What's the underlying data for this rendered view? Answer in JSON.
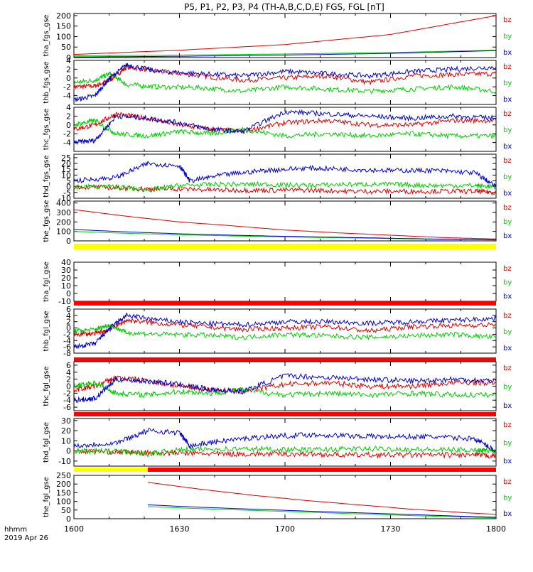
{
  "title": "P5, P1, P2, P3, P4 (TH-A,B,C,D,E) FGS, FGL [nT]",
  "colors": {
    "bx": "#0000cc",
    "by": "#00cc00",
    "bz": "#dd0000",
    "bar_yellow": "#ffff00",
    "bar_red": "#ff0000"
  },
  "time_axis": {
    "ticks": [
      "1600",
      "1630",
      "1700",
      "1730",
      "1800"
    ],
    "hours_start": 0,
    "hours_end": 2
  },
  "footer": {
    "label_hhmm": "hhmm",
    "date": "2019 Apr 26"
  },
  "chart_data": [
    {
      "type": "line",
      "panel": "tha_fgs_gse",
      "ylabel": "tha_fgs_gse",
      "ylim": [
        0,
        210
      ],
      "yticks": [
        0,
        50,
        100,
        150,
        200
      ],
      "legend": [
        "bz",
        "by",
        "bx"
      ],
      "series": [
        {
          "name": "bz",
          "color": "bz",
          "x": [
            0,
            0.5,
            1,
            1.5,
            2
          ],
          "values": [
            15,
            35,
            62,
            110,
            200
          ]
        },
        {
          "name": "by",
          "color": "by",
          "x": [
            0,
            0.5,
            1,
            1.5,
            2
          ],
          "values": [
            8,
            12,
            17,
            24,
            35
          ]
        },
        {
          "name": "bx",
          "color": "bx",
          "x": [
            0,
            0.5,
            1,
            1.5,
            2
          ],
          "values": [
            3,
            6,
            12,
            20,
            33
          ]
        }
      ]
    },
    {
      "type": "line",
      "panel": "thb_fgs_gse",
      "ylabel": "thb_fgs_gse",
      "ylim": [
        -6,
        4
      ],
      "yticks": [
        -4,
        -2,
        0,
        2,
        4
      ],
      "legend": [
        "bz",
        "by",
        "bx"
      ],
      "series": [
        {
          "name": "bz",
          "color": "bz",
          "x": [
            0,
            0.1,
            0.17,
            0.25,
            0.4,
            0.6,
            0.8,
            1.0,
            1.2,
            1.4,
            1.6,
            1.8,
            2.0
          ],
          "values": [
            -2,
            -1.8,
            -0.5,
            2.5,
            1.5,
            0.5,
            -0.5,
            0.0,
            0.5,
            -1.0,
            0.5,
            0.8,
            1.0
          ]
        },
        {
          "name": "by",
          "color": "by",
          "x": [
            0,
            0.1,
            0.17,
            0.25,
            0.4,
            0.6,
            0.8,
            1.0,
            1.2,
            1.4,
            1.6,
            1.8,
            2.0
          ],
          "values": [
            -1,
            -0.5,
            1.0,
            -1.5,
            -2.0,
            -2.2,
            -3.0,
            -2.0,
            -2.5,
            -3.0,
            -2.5,
            -2.0,
            -3.0
          ]
        },
        {
          "name": "bx",
          "color": "bx",
          "x": [
            0,
            0.1,
            0.17,
            0.25,
            0.4,
            0.6,
            0.8,
            1.0,
            1.2,
            1.4,
            1.6,
            1.8,
            2.0
          ],
          "values": [
            -5,
            -4,
            0,
            3,
            1.5,
            1.0,
            0.5,
            1.5,
            1.0,
            0.5,
            1.5,
            2.0,
            2.5
          ]
        }
      ]
    },
    {
      "type": "line",
      "panel": "thc_fgs_gse",
      "ylabel": "thc_fgs_gse",
      "ylim": [
        -6,
        4
      ],
      "yticks": [
        -4,
        -2,
        0,
        2,
        4
      ],
      "legend": [
        "bz",
        "by",
        "bx"
      ],
      "series": [
        {
          "name": "bz",
          "color": "bz",
          "x": [
            0,
            0.1,
            0.2,
            0.35,
            0.5,
            0.65,
            0.8,
            1.0,
            1.2,
            1.4,
            1.6,
            1.8,
            2.0
          ],
          "values": [
            -1,
            0,
            2.5,
            1.5,
            0.0,
            -1.0,
            -1.5,
            0.5,
            1.0,
            0.0,
            0.0,
            1.0,
            1.0
          ]
        },
        {
          "name": "by",
          "color": "by",
          "x": [
            0,
            0.1,
            0.2,
            0.35,
            0.5,
            0.65,
            0.8,
            1.0,
            1.2,
            1.4,
            1.6,
            1.8,
            2.0
          ],
          "values": [
            0,
            1.0,
            -2.0,
            -2.5,
            -1.5,
            -2.0,
            -1.0,
            -2.5,
            -2.0,
            -2.5,
            -2.0,
            -2.5,
            -2.5
          ]
        },
        {
          "name": "bx",
          "color": "bx",
          "x": [
            0,
            0.1,
            0.2,
            0.35,
            0.5,
            0.65,
            0.8,
            1.0,
            1.2,
            1.4,
            1.6,
            1.8,
            2.0
          ],
          "values": [
            -4,
            -3.5,
            2.0,
            1.5,
            0.5,
            -1.0,
            -1.5,
            3.0,
            2.5,
            2.0,
            1.5,
            2.0,
            1.5
          ]
        }
      ]
    },
    {
      "type": "line",
      "panel": "thd_fgs_gse",
      "ylabel": "thd_fgs_gse",
      "ylim": [
        -10,
        28
      ],
      "yticks": [
        -10,
        -5,
        0,
        5,
        10,
        15,
        20,
        25
      ],
      "legend": [
        "bz",
        "by",
        "bx"
      ],
      "series": [
        {
          "name": "bz",
          "color": "bz",
          "x": [
            0,
            0.2,
            0.35,
            0.5,
            0.7,
            0.9,
            1.1,
            1.3,
            1.5,
            1.7,
            1.9,
            2.0
          ],
          "values": [
            0,
            -1,
            -2,
            -2,
            -3,
            -3,
            -3,
            -4,
            -4,
            -4,
            -4,
            -5
          ]
        },
        {
          "name": "by",
          "color": "by",
          "x": [
            0,
            0.2,
            0.35,
            0.5,
            0.7,
            0.9,
            1.1,
            1.3,
            1.5,
            1.7,
            1.9,
            2.0
          ],
          "values": [
            0,
            0,
            -3,
            1,
            2,
            2,
            1,
            2,
            2,
            1,
            1,
            0
          ]
        },
        {
          "name": "bx",
          "color": "bx",
          "x": [
            0,
            0.2,
            0.35,
            0.5,
            0.55,
            0.7,
            0.9,
            1.1,
            1.3,
            1.5,
            1.7,
            1.9,
            2.0
          ],
          "values": [
            5,
            8,
            20,
            18,
            5,
            10,
            14,
            16,
            15,
            14,
            14,
            12,
            0
          ]
        }
      ]
    },
    {
      "type": "line",
      "panel": "the_fgs_gse",
      "ylabel": "the_fgs_gse",
      "ylim": [
        0,
        420
      ],
      "yticks": [
        0,
        100,
        200,
        300,
        400
      ],
      "legend": [
        "bz",
        "by",
        "bx"
      ],
      "series": [
        {
          "name": "bz",
          "color": "bz",
          "x": [
            0,
            0.25,
            0.5,
            0.75,
            1,
            1.25,
            1.5,
            1.75,
            2
          ],
          "values": [
            330,
            260,
            200,
            160,
            115,
            85,
            60,
            35,
            20
          ]
        },
        {
          "name": "by",
          "color": "by",
          "x": [
            0,
            0.25,
            0.5,
            0.75,
            1,
            1.25,
            1.5,
            1.75,
            2
          ],
          "values": [
            100,
            80,
            65,
            52,
            42,
            33,
            25,
            15,
            10
          ]
        },
        {
          "name": "bx",
          "color": "bx",
          "x": [
            0,
            0.25,
            0.5,
            0.75,
            1,
            1.25,
            1.5,
            1.75,
            2
          ],
          "values": [
            120,
            95,
            75,
            60,
            48,
            38,
            28,
            18,
            12
          ]
        }
      ]
    },
    {
      "type": "line",
      "panel": "tha_fgl_gse",
      "ylabel": "tha_fgl_gse",
      "ylim": [
        -10,
        40
      ],
      "yticks": [
        -10,
        0,
        10,
        20,
        30,
        40
      ],
      "legend": [
        "bz",
        "by",
        "bx"
      ],
      "series": []
    },
    {
      "type": "line",
      "panel": "thb_fgl_gse",
      "ylabel": "thb_fgl_gse",
      "ylim": [
        -8,
        6
      ],
      "yticks": [
        -8,
        -6,
        -4,
        -2,
        0,
        2,
        4,
        6
      ],
      "legend": [
        "bz",
        "by",
        "bx"
      ],
      "series": [
        {
          "name": "bz",
          "color": "bz",
          "x": [
            0,
            0.1,
            0.17,
            0.25,
            0.4,
            0.6,
            0.8,
            1.0,
            1.2,
            1.4,
            1.6,
            1.8,
            2.0
          ],
          "values": [
            -2,
            -1.8,
            -0.5,
            2.5,
            1.5,
            0.5,
            -0.5,
            0.0,
            0.5,
            -1.0,
            0.5,
            0.8,
            1.0
          ]
        },
        {
          "name": "by",
          "color": "by",
          "x": [
            0,
            0.1,
            0.17,
            0.25,
            0.4,
            0.6,
            0.8,
            1.0,
            1.2,
            1.4,
            1.6,
            1.8,
            2.0
          ],
          "values": [
            -1,
            -0.5,
            1.0,
            -1.5,
            -2.0,
            -2.2,
            -3.0,
            -2.0,
            -2.5,
            -3.0,
            -2.5,
            -2.0,
            -3.0
          ]
        },
        {
          "name": "bx",
          "color": "bx",
          "x": [
            0,
            0.1,
            0.17,
            0.25,
            0.4,
            0.6,
            0.8,
            1.0,
            1.2,
            1.4,
            1.6,
            1.8,
            2.0
          ],
          "values": [
            -6,
            -5,
            0,
            4,
            2.5,
            1.5,
            1.0,
            2.0,
            2.0,
            1.5,
            2.0,
            2.5,
            3.0
          ]
        }
      ]
    },
    {
      "type": "line",
      "panel": "thc_fgl_gse",
      "ylabel": "thc_fgl_gse",
      "ylim": [
        -7,
        7
      ],
      "yticks": [
        -6,
        -4,
        -2,
        0,
        2,
        4,
        6
      ],
      "legend": [
        "bz",
        "by",
        "bx"
      ],
      "series": [
        {
          "name": "bz",
          "color": "bz",
          "x": [
            0,
            0.1,
            0.2,
            0.35,
            0.5,
            0.65,
            0.8,
            1.0,
            1.2,
            1.4,
            1.6,
            1.8,
            2.0
          ],
          "values": [
            -1,
            0,
            2.5,
            1.5,
            0.0,
            -1.0,
            -1.5,
            0.5,
            1.0,
            0.0,
            0.0,
            1.0,
            1.0
          ]
        },
        {
          "name": "by",
          "color": "by",
          "x": [
            0,
            0.1,
            0.2,
            0.35,
            0.5,
            0.65,
            0.8,
            1.0,
            1.2,
            1.4,
            1.6,
            1.8,
            2.0
          ],
          "values": [
            0,
            1.0,
            -2.0,
            -2.5,
            -1.5,
            -2.0,
            -1.0,
            -2.5,
            -2.0,
            -2.5,
            -2.0,
            -2.5,
            -2.5
          ]
        },
        {
          "name": "bx",
          "color": "bx",
          "x": [
            0,
            0.1,
            0.2,
            0.35,
            0.5,
            0.65,
            0.8,
            1.0,
            1.2,
            1.4,
            1.6,
            1.8,
            2.0
          ],
          "values": [
            -4,
            -3.5,
            2.0,
            1.5,
            0.5,
            -1.0,
            -1.5,
            3.0,
            2.5,
            2.0,
            1.5,
            2.0,
            1.5
          ]
        }
      ]
    },
    {
      "type": "line",
      "panel": "thd_fgl_gse",
      "ylabel": "thd_fgl_gse",
      "ylim": [
        -15,
        32
      ],
      "yticks": [
        -10,
        0,
        10,
        20,
        30
      ],
      "legend": [
        "bz",
        "by",
        "bx"
      ],
      "series": [
        {
          "name": "bz",
          "color": "bz",
          "x": [
            0,
            0.2,
            0.35,
            0.5,
            0.7,
            0.9,
            1.1,
            1.3,
            1.5,
            1.7,
            1.9,
            2.0
          ],
          "values": [
            0,
            -1,
            -2,
            -2,
            -3,
            -3,
            -3,
            -4,
            -4,
            -4,
            -4,
            -5
          ]
        },
        {
          "name": "by",
          "color": "by",
          "x": [
            0,
            0.2,
            0.35,
            0.5,
            0.7,
            0.9,
            1.1,
            1.3,
            1.5,
            1.7,
            1.9,
            2.0
          ],
          "values": [
            0,
            0,
            -3,
            1,
            2,
            2,
            1,
            2,
            2,
            1,
            1,
            0
          ]
        },
        {
          "name": "bx",
          "color": "bx",
          "x": [
            0,
            0.2,
            0.35,
            0.5,
            0.55,
            0.7,
            0.9,
            1.1,
            1.3,
            1.5,
            1.7,
            1.9,
            2.0
          ],
          "values": [
            5,
            8,
            20,
            18,
            5,
            10,
            14,
            16,
            15,
            14,
            14,
            12,
            0
          ]
        }
      ]
    },
    {
      "type": "line",
      "panel": "the_fgl_gse",
      "ylabel": "the_fgl_gse",
      "ylim": [
        0,
        250
      ],
      "yticks": [
        0,
        50,
        100,
        150,
        200,
        250
      ],
      "legend": [
        "bz",
        "by",
        "bx"
      ],
      "series": [
        {
          "name": "bz",
          "color": "bz",
          "x": [
            0.35,
            0.6,
            0.85,
            1.1,
            1.35,
            1.6,
            1.85,
            2.0
          ],
          "values": [
            210,
            170,
            135,
            105,
            80,
            55,
            35,
            25
          ]
        },
        {
          "name": "by",
          "color": "by",
          "x": [
            0.35,
            0.6,
            0.85,
            1.1,
            1.35,
            1.6,
            1.85,
            2.0
          ],
          "values": [
            70,
            58,
            48,
            38,
            28,
            18,
            10,
            5
          ]
        },
        {
          "name": "bx",
          "color": "bx",
          "x": [
            0.35,
            0.6,
            0.85,
            1.1,
            1.35,
            1.6,
            1.85,
            2.0
          ],
          "values": [
            80,
            66,
            55,
            44,
            34,
            24,
            14,
            8
          ]
        }
      ]
    }
  ],
  "status_bars": [
    {
      "after_panel": "the_fgs_gse",
      "segments": [
        {
          "from": 0,
          "to": 2,
          "color": "bar_yellow"
        }
      ]
    },
    {
      "after_panel": "tha_fgl_gse",
      "segments": [
        {
          "from": 0,
          "to": 2,
          "color": "bar_red"
        }
      ]
    },
    {
      "after_panel": "thb_fgl_gse",
      "segments": [
        {
          "from": 0,
          "to": 2,
          "color": "bar_red"
        }
      ]
    },
    {
      "after_panel": "thc_fgl_gse",
      "segments": [
        {
          "from": 0,
          "to": 2,
          "color": "bar_red"
        }
      ]
    },
    {
      "after_panel": "thd_fgl_gse",
      "segments": [
        {
          "from": 0,
          "to": 0.35,
          "color": "bar_yellow"
        },
        {
          "from": 0.35,
          "to": 2,
          "color": "bar_red"
        }
      ]
    }
  ]
}
